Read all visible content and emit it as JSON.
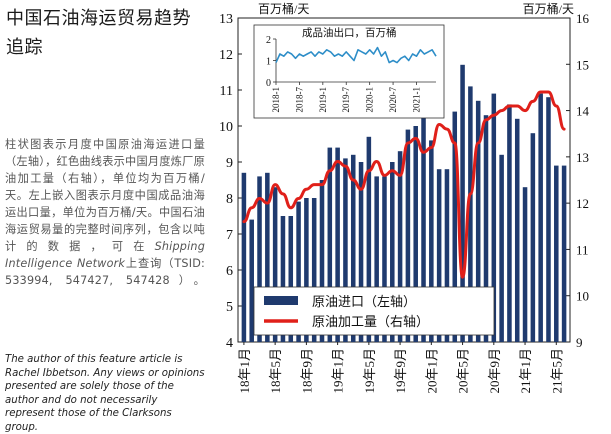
{
  "sidebar": {
    "title": "中国石油海运贸易趋势追踪",
    "description_before": "柱状图表示月度中国原油海运进口量（左轴），红色曲线表示中国月度炼厂原油加工量（右轴），单位均为百万桶/天。左上嵌入图表示月度中国成品油海运出口量，单位为百万桶/天。中国石油海运贸易量的完整时间序列，包含以吨计的数据，可在",
    "description_source": "Shipping Intelligence Network",
    "description_after": "上查询（TSID: 533994, 547427, 547428）。",
    "author_note": "The author of this feature article is Rachel Ibbetson. Any views or opinions presented are solely those of the author and do not necessarily represent those of the Clarksons group."
  },
  "chart_data": [
    {
      "type": "bar",
      "id": "main",
      "left_axis_unit": "百万桶/天",
      "right_axis_unit": "百万桶/天",
      "ylim_left": [
        4,
        13
      ],
      "ylim_right": [
        9,
        16
      ],
      "yticks_left": [
        "4",
        "5",
        "6",
        "7",
        "8",
        "9",
        "10",
        "11",
        "12",
        "13"
      ],
      "yticks_right": [
        "9",
        "10",
        "11",
        "12",
        "13",
        "14",
        "15",
        "16"
      ],
      "x_tick_labels": [
        "18年1月",
        "18年5月",
        "18年9月",
        "19年1月",
        "19年5月",
        "19年9月",
        "20年1月",
        "20年5月",
        "20年9月",
        "21年1月",
        "21年5月"
      ],
      "x_tick_indices": [
        0,
        4,
        8,
        12,
        16,
        20,
        24,
        28,
        32,
        36,
        40
      ],
      "categories": [
        "2018-01",
        "2018-02",
        "2018-03",
        "2018-04",
        "2018-05",
        "2018-06",
        "2018-07",
        "2018-08",
        "2018-09",
        "2018-10",
        "2018-11",
        "2018-12",
        "2019-01",
        "2019-02",
        "2019-03",
        "2019-04",
        "2019-05",
        "2019-06",
        "2019-07",
        "2019-08",
        "2019-09",
        "2019-10",
        "2019-11",
        "2019-12",
        "2020-01",
        "2020-02",
        "2020-03",
        "2020-04",
        "2020-05",
        "2020-06",
        "2020-07",
        "2020-08",
        "2020-09",
        "2020-10",
        "2020-11",
        "2020-12",
        "2021-01",
        "2021-02",
        "2021-03",
        "2021-04",
        "2021-05",
        "2021-06"
      ],
      "series": [
        {
          "name": "原油进口（左轴）",
          "kind": "bar",
          "axis": "left",
          "color": "#1f3a6e",
          "values": [
            8.7,
            7.4,
            8.6,
            8.7,
            8.3,
            7.5,
            7.5,
            7.9,
            8.0,
            8.0,
            8.5,
            9.4,
            9.4,
            9.1,
            9.2,
            9.0,
            9.7,
            8.6,
            8.6,
            9.0,
            9.3,
            9.9,
            10.0,
            10.6,
            9.6,
            8.8,
            8.8,
            10.4,
            11.7,
            11.1,
            10.7,
            10.3,
            10.9,
            9.2,
            10.6,
            10.2,
            8.3,
            9.8,
            10.9,
            10.8,
            8.9,
            8.9
          ]
        },
        {
          "name": "原油加工量（右轴）",
          "kind": "line",
          "axis": "right",
          "color": "#e0201a",
          "values": [
            11.6,
            11.9,
            12.1,
            12.0,
            12.4,
            12.2,
            11.9,
            12.1,
            12.3,
            12.4,
            12.4,
            12.7,
            12.9,
            12.8,
            12.5,
            12.3,
            12.7,
            12.9,
            12.6,
            12.7,
            12.6,
            13.3,
            13.4,
            13.1,
            13.2,
            13.7,
            13.6,
            13.3,
            10.4,
            12.2,
            13.3,
            13.8,
            13.9,
            14.0,
            14.1,
            14.1,
            14.0,
            14.2,
            14.4,
            14.4,
            14.1,
            13.6
          ]
        }
      ],
      "legend_position": "bottom-center"
    },
    {
      "type": "line",
      "id": "inset",
      "title": "成品油出口，百万桶",
      "ylim": [
        0,
        2
      ],
      "yticks": [
        "0",
        "1",
        "2"
      ],
      "x_tick_labels": [
        "2018-1",
        "2018-7",
        "2019-1",
        "2019-7",
        "2020-1",
        "2020-7",
        "2021-1"
      ],
      "x_tick_indices": [
        0,
        6,
        12,
        18,
        24,
        30,
        36
      ],
      "series": [
        {
          "color": "#2e8ec8",
          "values": [
            0.9,
            1.3,
            1.2,
            1.4,
            1.3,
            1.1,
            1.3,
            1.2,
            1.3,
            1.4,
            1.2,
            1.4,
            1.3,
            1.5,
            1.4,
            1.2,
            1.3,
            1.2,
            1.4,
            1.2,
            1.0,
            1.5,
            1.4,
            1.3,
            1.5,
            1.3,
            1.6,
            1.2,
            1.4,
            0.9,
            1.0,
            0.9,
            1.1,
            1.2,
            1.0,
            1.3,
            1.2,
            1.5,
            1.3,
            1.4,
            1.5,
            1.2
          ]
        }
      ]
    }
  ]
}
